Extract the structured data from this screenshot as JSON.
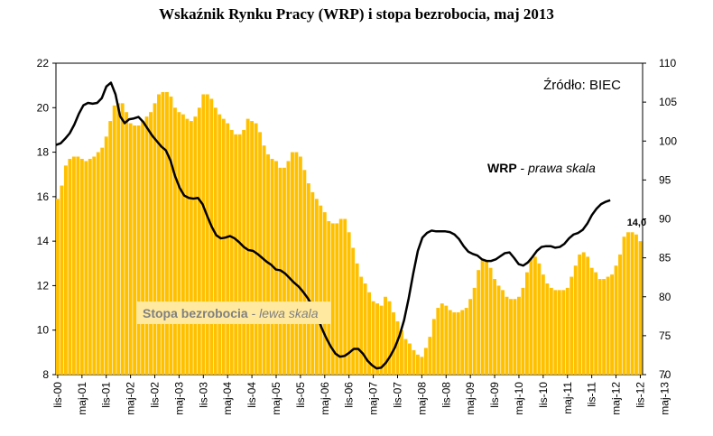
{
  "chart_data": {
    "type": "bar+line",
    "title": "Wskaźnik Rynku Pracy (WRP) i stopa bezrobocia, maj 2013",
    "source": "Źródło: BIEC",
    "x_tick_labels": [
      "lis-00",
      "maj-01",
      "lis-01",
      "maj-02",
      "lis-02",
      "maj-03",
      "lis-03",
      "maj-04",
      "lis-04",
      "maj-05",
      "lis-05",
      "maj-06",
      "lis-06",
      "maj-07",
      "lis-07",
      "maj-08",
      "lis-08",
      "maj-09",
      "lis-09",
      "maj-10",
      "lis-10",
      "maj-11",
      "lis-11",
      "maj-12",
      "lis-12",
      "maj-13"
    ],
    "left_axis": {
      "range": [
        8,
        22
      ],
      "ticks": [
        "8",
        "10",
        "12",
        "14",
        "16",
        "18",
        "20",
        "22"
      ]
    },
    "right_axis": {
      "range": [
        70,
        110
      ],
      "ticks": [
        "70",
        "75",
        "80",
        "85",
        "90",
        "95",
        "100",
        "105",
        "110"
      ]
    },
    "bars": {
      "label_bold": "Stopa bezrobocia",
      "label_italic": "lewa skala",
      "label_sep": " - ",
      "color": "#FFC000",
      "last_value_label": "14,0",
      "values": [
        15.9,
        16.5,
        17.4,
        17.7,
        17.8,
        17.8,
        17.7,
        17.6,
        17.7,
        17.8,
        18.0,
        18.2,
        18.7,
        19.4,
        20.1,
        20.2,
        20.2,
        19.8,
        19.3,
        19.2,
        19.2,
        19.4,
        19.6,
        19.8,
        20.2,
        20.6,
        20.7,
        20.7,
        20.5,
        20.0,
        19.8,
        19.7,
        19.5,
        19.4,
        19.6,
        20.0,
        20.6,
        20.6,
        20.4,
        20.0,
        19.7,
        19.5,
        19.3,
        19.0,
        18.8,
        18.8,
        19.0,
        19.5,
        19.4,
        19.3,
        18.9,
        18.3,
        17.9,
        17.7,
        17.6,
        17.3,
        17.3,
        17.6,
        18.0,
        18.0,
        17.8,
        17.2,
        16.6,
        16.2,
        15.9,
        15.6,
        15.3,
        14.9,
        14.8,
        14.8,
        15.0,
        15.0,
        14.4,
        13.7,
        13.0,
        12.4,
        12.1,
        11.7,
        11.3,
        11.2,
        11.1,
        11.5,
        11.3,
        10.8,
        10.4,
        10.0,
        9.6,
        9.4,
        9.1,
        8.9,
        8.8,
        9.2,
        9.7,
        10.5,
        11.0,
        11.2,
        11.1,
        10.9,
        10.8,
        10.8,
        10.9,
        11.0,
        11.4,
        11.9,
        12.7,
        13.2,
        13.1,
        12.8,
        12.3,
        12.0,
        11.8,
        11.5,
        11.4,
        11.4,
        11.5,
        11.9,
        12.6,
        13.2,
        13.3,
        13.0,
        12.5,
        12.1,
        11.9,
        11.8,
        11.8,
        11.8,
        11.9,
        12.4,
        12.9,
        13.4,
        13.5,
        13.3,
        12.8,
        12.6,
        12.3,
        12.3,
        12.4,
        12.5,
        12.9,
        13.4,
        14.2,
        14.4,
        14.4,
        14.3,
        14.0
      ]
    },
    "line": {
      "label_bold": "WRP",
      "label_italic": "prawa skala",
      "label_sep": " - ",
      "color": "#000000",
      "values": [
        99.5,
        99.7,
        100.3,
        101.0,
        102.1,
        103.5,
        104.6,
        104.9,
        104.8,
        104.9,
        105.5,
        107.0,
        107.5,
        106.0,
        103.2,
        102.3,
        102.8,
        102.9,
        103.1,
        102.5,
        101.6,
        100.7,
        100.0,
        99.3,
        98.8,
        97.5,
        95.5,
        94.0,
        93.0,
        92.7,
        92.6,
        92.7,
        91.9,
        90.4,
        89.0,
        87.9,
        87.5,
        87.6,
        87.8,
        87.5,
        87.0,
        86.4,
        86.0,
        85.9,
        85.5,
        85.0,
        84.5,
        84.1,
        83.5,
        83.4,
        83.0,
        82.4,
        81.8,
        81.3,
        80.6,
        79.8,
        78.8,
        77.5,
        76.0,
        74.7,
        73.6,
        72.7,
        72.3,
        72.4,
        72.8,
        73.3,
        73.3,
        72.7,
        71.8,
        71.2,
        70.8,
        70.9,
        71.5,
        72.4,
        73.5,
        75.0,
        77.0,
        79.8,
        83.0,
        85.9,
        87.6,
        88.2,
        88.5,
        88.4,
        88.4,
        88.4,
        88.3,
        88.0,
        87.4,
        86.5,
        85.8,
        85.5,
        85.3,
        84.8,
        84.6,
        84.6,
        84.8,
        85.2,
        85.6,
        85.7,
        85.0,
        84.2,
        84.0,
        84.4,
        85.1,
        85.9,
        86.4,
        86.5,
        86.5,
        86.3,
        86.4,
        86.8,
        87.5,
        88.0,
        88.2,
        88.6,
        89.4,
        90.5,
        91.3,
        91.9,
        92.2,
        92.4
      ]
    }
  }
}
